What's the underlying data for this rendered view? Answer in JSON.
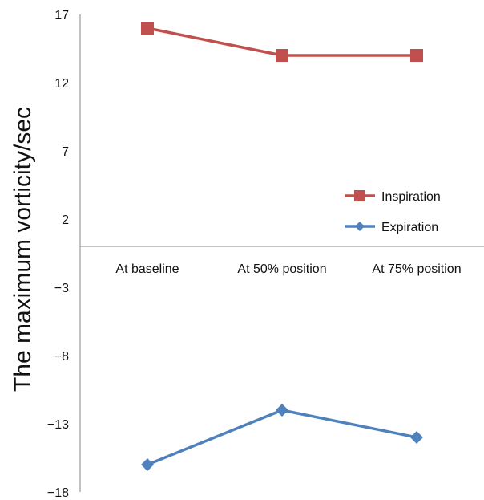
{
  "chart_data": {
    "type": "line",
    "categories": [
      "At baseline",
      "At 50% position",
      "At 75% position"
    ],
    "series": [
      {
        "name": "Inspiration",
        "values": [
          16,
          14,
          14
        ],
        "color": "#c0504d",
        "marker": "square"
      },
      {
        "name": "Expiration",
        "values": [
          -16,
          -12,
          -14
        ],
        "color": "#4f81bd",
        "marker": "diamond"
      }
    ],
    "title": "",
    "xlabel": "",
    "ylabel": "The maximum vorticity/sec",
    "ylim": [
      -18,
      17
    ],
    "yticks": [
      17,
      12,
      7,
      2,
      -3,
      -8,
      -13,
      -18
    ],
    "grid": false,
    "legend_position": "right"
  }
}
